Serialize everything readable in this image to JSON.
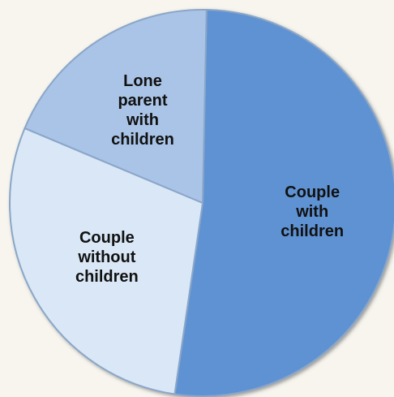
{
  "chart_data": {
    "type": "pie",
    "categories": [
      "Couple with children",
      "Couple without children",
      "Lone parent with children"
    ],
    "values": [
      52,
      29,
      19
    ],
    "colors": [
      "#5f92d3",
      "#d9e7f6",
      "#aac4e7"
    ]
  }
}
